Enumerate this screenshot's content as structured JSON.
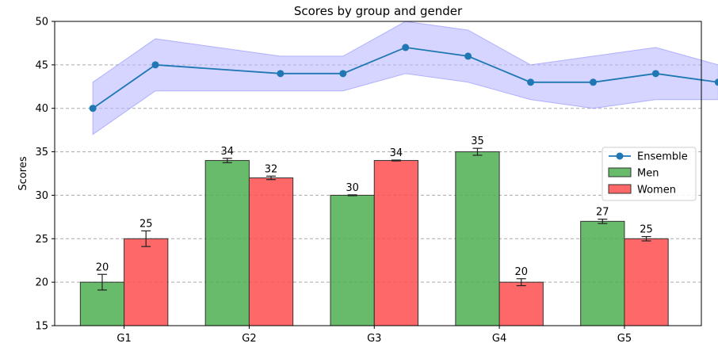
{
  "chart_data": {
    "type": "bar",
    "title": "Scores by group and gender",
    "xlabel": "",
    "ylabel": "Scores",
    "ylim": [
      15,
      50
    ],
    "yticks": [
      15,
      20,
      25,
      30,
      35,
      40,
      45,
      50
    ],
    "grid": "horizontal-dashed",
    "legend_position": "center-right",
    "categories": [
      "G1",
      "G2",
      "G3",
      "G4",
      "G5"
    ],
    "series": [
      {
        "name": "Men",
        "kind": "bar",
        "color": "#4caf50",
        "values": [
          20,
          34,
          30,
          35,
          27
        ],
        "errors": [
          0.9,
          0.25,
          0.05,
          0.4,
          0.25
        ],
        "value_labels": [
          "20",
          "34",
          "30",
          "35",
          "27"
        ]
      },
      {
        "name": "Women",
        "kind": "bar",
        "color": "#ff4d4d",
        "values": [
          25,
          32,
          34,
          20,
          25
        ],
        "errors": [
          0.9,
          0.2,
          0.05,
          0.4,
          0.25
        ],
        "value_labels": [
          "25",
          "32",
          "34",
          "20",
          "25"
        ]
      }
    ],
    "line": {
      "name": "Ensemble",
      "color": "#1f77b4",
      "band_color": "#b3b3ff",
      "x": [
        0.75,
        1.25,
        2.25,
        2.75,
        3.25,
        3.75,
        4.25,
        4.75,
        5.25,
        5.75
      ],
      "values": [
        40,
        45,
        44,
        44,
        47,
        46,
        43,
        43,
        44,
        43
      ],
      "band_lower": [
        37,
        42,
        42,
        42,
        44,
        43,
        41,
        40,
        41,
        41
      ],
      "band_upper": [
        43,
        48,
        46,
        46,
        50,
        49,
        45,
        46,
        47,
        45
      ]
    }
  }
}
